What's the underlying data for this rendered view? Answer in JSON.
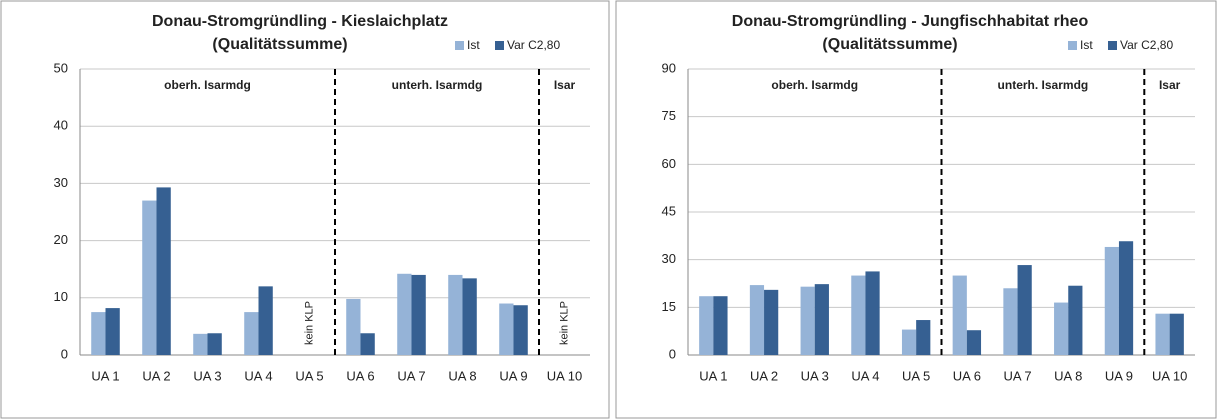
{
  "chart_data": [
    {
      "type": "bar",
      "title": "Donau-Stromgründling - Kieslaichplatz",
      "subtitle": "(Qualitätssumme)",
      "categories": [
        "UA 1",
        "UA 2",
        "UA 3",
        "UA 4",
        "UA 5",
        "UA 6",
        "UA 7",
        "UA 8",
        "UA 9",
        "UA 10"
      ],
      "series": [
        {
          "name": "Ist",
          "color": "#95b3d7",
          "values": [
            7.5,
            27,
            3.7,
            7.5,
            null,
            9.8,
            14.2,
            14,
            9,
            null
          ]
        },
        {
          "name": "Var C2,80",
          "color": "#366092",
          "values": [
            8.2,
            29.3,
            3.8,
            12,
            null,
            3.8,
            14,
            13.4,
            8.7,
            null
          ]
        }
      ],
      "ylim": [
        0,
        50
      ],
      "yticks": [
        0,
        10,
        20,
        30,
        40,
        50
      ],
      "grid": true,
      "regions": [
        "oberh. Isarmdg",
        "unterh. Isarmdg",
        "Isar"
      ],
      "notes": [
        "kein KLP",
        "kein KLP"
      ]
    },
    {
      "type": "bar",
      "title": "Donau-Stromgründling - Jungfischhabitat rheo",
      "subtitle": "(Qualitätssumme)",
      "categories": [
        "UA 1",
        "UA 2",
        "UA 3",
        "UA 4",
        "UA 5",
        "UA 6",
        "UA 7",
        "UA 8",
        "UA 9",
        "UA 10"
      ],
      "series": [
        {
          "name": "Ist",
          "color": "#95b3d7",
          "values": [
            18.5,
            22,
            21.5,
            25,
            8,
            25,
            21,
            16.5,
            34,
            13
          ]
        },
        {
          "name": "Var C2,80",
          "color": "#366092",
          "values": [
            18.5,
            20.5,
            22.3,
            26.3,
            11,
            7.8,
            28.3,
            21.8,
            35.8,
            13
          ]
        }
      ],
      "ylim": [
        0,
        90
      ],
      "yticks": [
        0,
        15,
        30,
        45,
        60,
        75,
        90
      ],
      "grid": true,
      "regions": [
        "oberh. Isarmdg",
        "unterh. Isarmdg",
        "Isar"
      ]
    }
  ]
}
